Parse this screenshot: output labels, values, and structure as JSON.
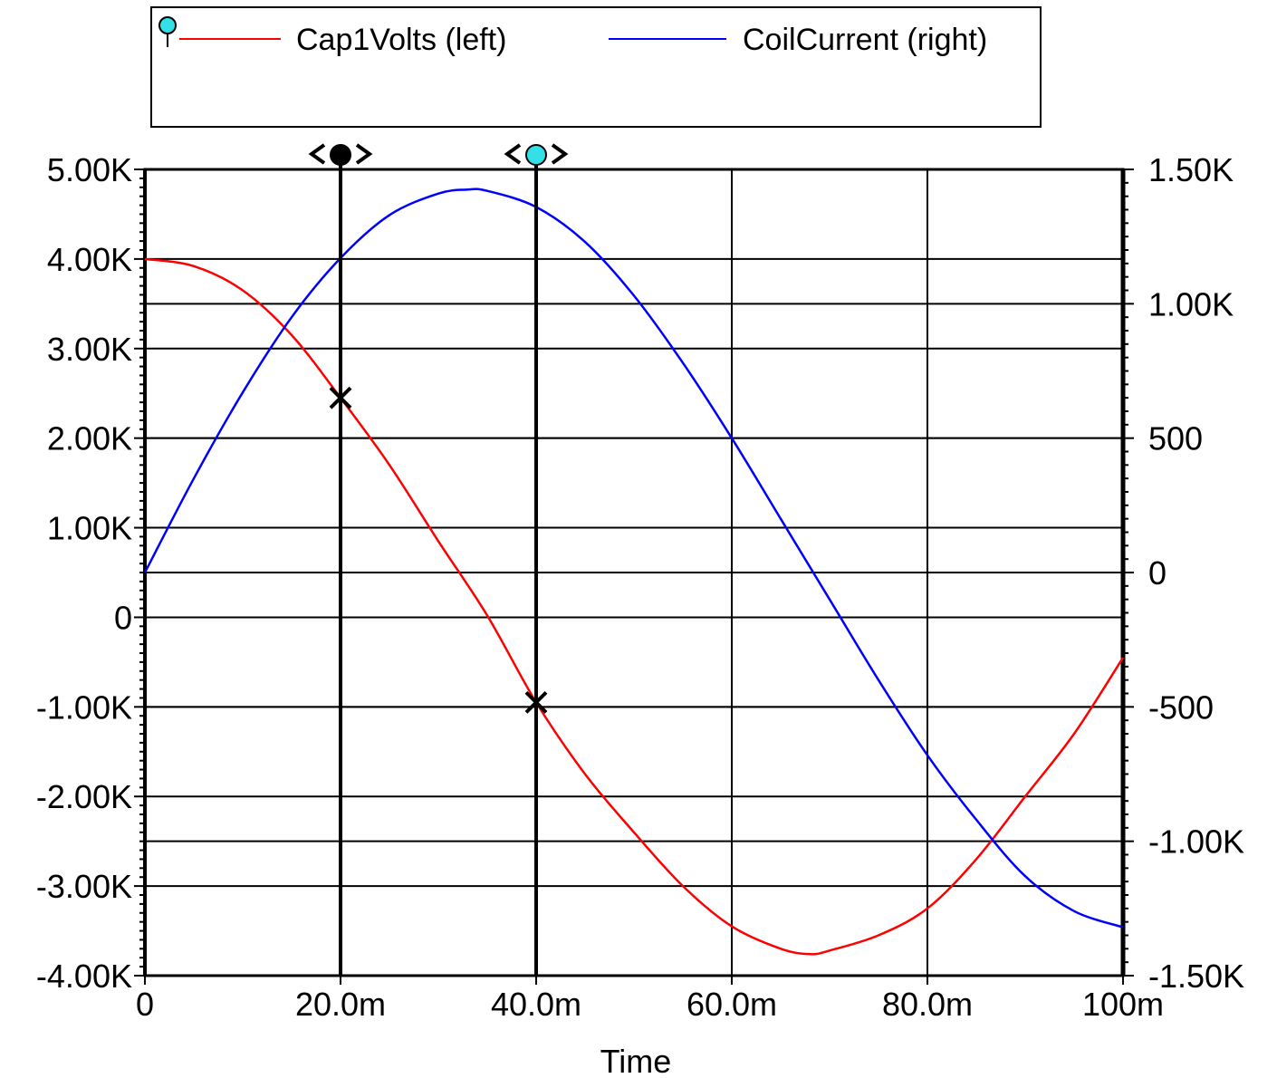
{
  "chart_data": {
    "type": "line",
    "xlabel": "Time",
    "x_ticks": [
      "0",
      "20.0m",
      "40.0m",
      "60.0m",
      "80.0m",
      "100m"
    ],
    "x_tick_values": [
      0,
      0.02,
      0.04,
      0.06,
      0.08,
      0.1
    ],
    "xlim": [
      0,
      0.1
    ],
    "left_ticks": [
      "5.00K",
      "4.00K",
      "3.00K",
      "2.00K",
      "1.00K",
      "0",
      "-1.00K",
      "-2.00K",
      "-3.00K",
      "-4.00K"
    ],
    "left_tick_values": [
      5000,
      4000,
      3000,
      2000,
      1000,
      0,
      -1000,
      -2000,
      -3000,
      -4000
    ],
    "ylim_left": [
      -4000,
      5000
    ],
    "right_ticks": [
      "1.50K",
      "1.00K",
      "500",
      "0",
      "-500",
      "-1.00K",
      "-1.50K"
    ],
    "right_tick_values": [
      1500,
      1000,
      500,
      0,
      -500,
      -1000,
      -1500
    ],
    "ylim_right": [
      -1500,
      1500
    ],
    "grid": true,
    "legend_position": "top",
    "series": [
      {
        "name": "Cap1Volts (left)",
        "axis": "left",
        "color": "#ff0000",
        "x": [
          0,
          0.005,
          0.01,
          0.015,
          0.02,
          0.025,
          0.03,
          0.035,
          0.04,
          0.045,
          0.05,
          0.055,
          0.06,
          0.065,
          0.068,
          0.07,
          0.075,
          0.08,
          0.085,
          0.09,
          0.095,
          0.1
        ],
        "values": [
          4000,
          3920,
          3650,
          3150,
          2450,
          1700,
          850,
          20,
          -950,
          -1750,
          -2400,
          -3000,
          -3450,
          -3700,
          -3760,
          -3720,
          -3550,
          -3250,
          -2700,
          -2000,
          -1300,
          -450
        ]
      },
      {
        "name": "CoilCurrent (right)",
        "axis": "right",
        "color": "#0000ff",
        "x": [
          0,
          0.005,
          0.01,
          0.015,
          0.02,
          0.025,
          0.03,
          0.033,
          0.035,
          0.04,
          0.045,
          0.05,
          0.055,
          0.06,
          0.065,
          0.07,
          0.075,
          0.08,
          0.085,
          0.09,
          0.095,
          0.1
        ],
        "values": [
          0,
          350,
          670,
          950,
          1170,
          1330,
          1410,
          1425,
          1420,
          1360,
          1230,
          1030,
          780,
          500,
          200,
          -100,
          -400,
          -680,
          -920,
          -1130,
          -1260,
          -1320
        ]
      }
    ],
    "cursors": [
      {
        "x": 0.02,
        "y": 2450,
        "marker": "filled-black"
      },
      {
        "x": 0.04,
        "y": -950,
        "marker": "cyan"
      }
    ],
    "colors": {
      "cursor_cyan": "#33e0e8",
      "grid": "#000000"
    }
  }
}
